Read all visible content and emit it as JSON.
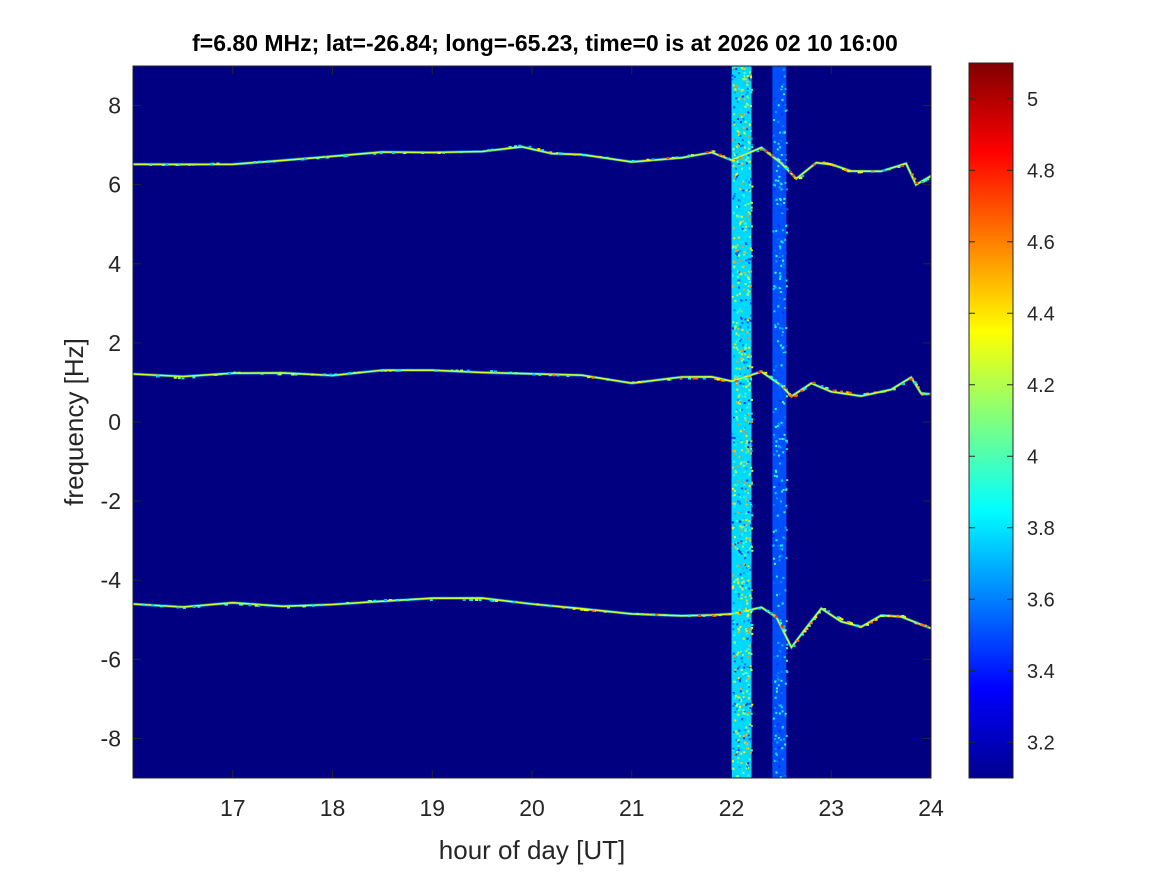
{
  "chart_data": {
    "type": "heatmap",
    "title": "f=6.80 MHz;  lat=-26.84; long=-65.23, time=0 is at 2026 02 10 16:00",
    "xlabel": "hour of day [UT]",
    "ylabel": "frequency [Hz]",
    "xlim": [
      16,
      24
    ],
    "ylim": [
      -9,
      9
    ],
    "x_ticks": [
      17,
      18,
      19,
      20,
      21,
      22,
      23,
      24
    ],
    "y_ticks": [
      -8,
      -6,
      -4,
      -2,
      0,
      2,
      4,
      6,
      8
    ],
    "colormap": "jet",
    "color_range": [
      3.1,
      5.1
    ],
    "colorbar_ticks": [
      3.2,
      3.4,
      3.6,
      3.8,
      4.0,
      4.2,
      4.4,
      4.6,
      4.8,
      5.0
    ],
    "colorbar_tick_labels": [
      "3.2",
      "3.4",
      "3.6",
      "3.8",
      "4",
      "4.2",
      "4.4",
      "4.6",
      "4.8",
      "5"
    ],
    "background_level": 3.1,
    "grid": false,
    "traces": [
      {
        "points": [
          [
            16.0,
            6.5
          ],
          [
            16.5,
            6.5
          ],
          [
            17.0,
            6.55
          ],
          [
            17.5,
            6.6
          ],
          [
            18.0,
            6.7
          ],
          [
            18.5,
            6.8
          ],
          [
            19.0,
            6.8
          ],
          [
            19.5,
            6.85
          ],
          [
            19.9,
            7.0
          ],
          [
            20.2,
            6.8
          ],
          [
            20.5,
            6.75
          ],
          [
            21.0,
            6.6
          ],
          [
            21.5,
            6.7
          ],
          [
            21.8,
            6.85
          ],
          [
            22.0,
            6.6
          ],
          [
            22.3,
            6.9
          ],
          [
            22.5,
            6.55
          ],
          [
            22.65,
            6.1
          ],
          [
            22.85,
            6.6
          ],
          [
            23.0,
            6.5
          ],
          [
            23.2,
            6.3
          ],
          [
            23.5,
            6.35
          ],
          [
            23.75,
            6.5
          ],
          [
            23.85,
            6.0
          ],
          [
            24.0,
            6.2
          ]
        ]
      },
      {
        "points": [
          [
            16.0,
            1.2
          ],
          [
            16.5,
            1.1
          ],
          [
            17.0,
            1.25
          ],
          [
            17.5,
            1.2
          ],
          [
            18.0,
            1.2
          ],
          [
            18.5,
            1.3
          ],
          [
            19.0,
            1.3
          ],
          [
            19.5,
            1.3
          ],
          [
            20.0,
            1.2
          ],
          [
            20.5,
            1.15
          ],
          [
            21.0,
            1.0
          ],
          [
            21.5,
            1.1
          ],
          [
            21.8,
            1.1
          ],
          [
            22.0,
            1.0
          ],
          [
            22.3,
            1.3
          ],
          [
            22.5,
            0.9
          ],
          [
            22.6,
            0.6
          ],
          [
            22.8,
            1.0
          ],
          [
            23.0,
            0.8
          ],
          [
            23.3,
            0.7
          ],
          [
            23.6,
            0.8
          ],
          [
            23.8,
            1.1
          ],
          [
            23.9,
            0.7
          ],
          [
            24.0,
            0.7
          ]
        ]
      },
      {
        "points": [
          [
            16.0,
            -4.6
          ],
          [
            16.5,
            -4.7
          ],
          [
            17.0,
            -4.6
          ],
          [
            17.5,
            -4.7
          ],
          [
            18.0,
            -4.6
          ],
          [
            18.5,
            -4.5
          ],
          [
            19.0,
            -4.5
          ],
          [
            19.5,
            -4.5
          ],
          [
            20.0,
            -4.6
          ],
          [
            20.5,
            -4.75
          ],
          [
            21.0,
            -4.85
          ],
          [
            21.5,
            -4.9
          ],
          [
            21.8,
            -4.9
          ],
          [
            22.0,
            -4.85
          ],
          [
            22.3,
            -4.7
          ],
          [
            22.45,
            -4.95
          ],
          [
            22.6,
            -5.7
          ],
          [
            22.75,
            -5.2
          ],
          [
            22.9,
            -4.7
          ],
          [
            23.1,
            -5.0
          ],
          [
            23.3,
            -5.2
          ],
          [
            23.5,
            -4.9
          ],
          [
            23.7,
            -4.9
          ],
          [
            23.85,
            -5.1
          ],
          [
            24.0,
            -5.2
          ]
        ]
      }
    ],
    "bands": [
      {
        "x_center": 22.1,
        "width_hours": 0.2,
        "peak_level": 4.6
      },
      {
        "x_center": 22.48,
        "width_hours": 0.14,
        "peak_level": 4.0
      }
    ]
  }
}
